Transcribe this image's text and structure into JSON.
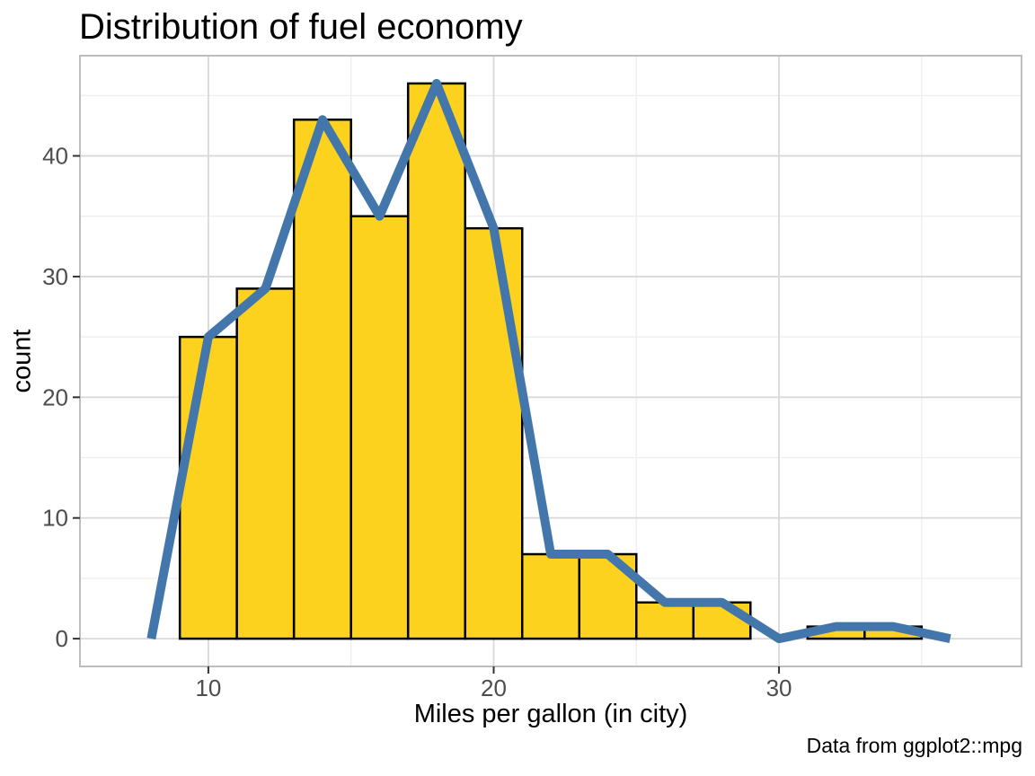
{
  "title": "Distribution of fuel economy",
  "caption": "Data from ggplot2::mpg",
  "chart_data": {
    "type": "histogram+line",
    "title": "Distribution of fuel economy",
    "xlabel": "Miles per gallon (in city)",
    "ylabel": "count",
    "caption": "Data from ggplot2::mpg",
    "series": [
      {
        "name": "histogram",
        "type": "bar",
        "bin_width": 2,
        "bin_centers": [
          10,
          12,
          14,
          16,
          18,
          20,
          22,
          24,
          26,
          28,
          30,
          32,
          34
        ],
        "counts": [
          25,
          29,
          43,
          35,
          46,
          34,
          7,
          7,
          3,
          3,
          0,
          1,
          1
        ]
      },
      {
        "name": "frequency-polygon",
        "type": "line",
        "x": [
          8,
          10,
          12,
          14,
          16,
          18,
          20,
          22,
          24,
          26,
          28,
          30,
          32,
          34,
          36
        ],
        "y": [
          0,
          25,
          29,
          43,
          35,
          46,
          34,
          7,
          7,
          3,
          3,
          0,
          1,
          1,
          0
        ]
      }
    ],
    "axes": {
      "x": {
        "label": "Miles per gallon (in city)",
        "ticks": [
          10,
          20,
          30
        ],
        "minor_ticks": [
          15,
          25,
          35
        ],
        "range": [
          5.5,
          38.5
        ]
      },
      "y": {
        "label": "count",
        "ticks": [
          0,
          10,
          20,
          30,
          40
        ],
        "minor_ticks": [
          5,
          15,
          25,
          35,
          45
        ],
        "range": [
          -2.3,
          48.3
        ]
      }
    },
    "grid": true,
    "legend": "none",
    "colors": {
      "bar_fill": "#FCD21E",
      "bar_stroke": "#000000",
      "line": "#4377AC",
      "grid_major": "#d9d9d9",
      "grid_minor": "#eeeeee",
      "panel_border": "#bdbdbd",
      "panel_background": "#ffffff",
      "tick_mark": "#333333",
      "tick_label": "#4d4d4d",
      "text": "#000000"
    }
  }
}
